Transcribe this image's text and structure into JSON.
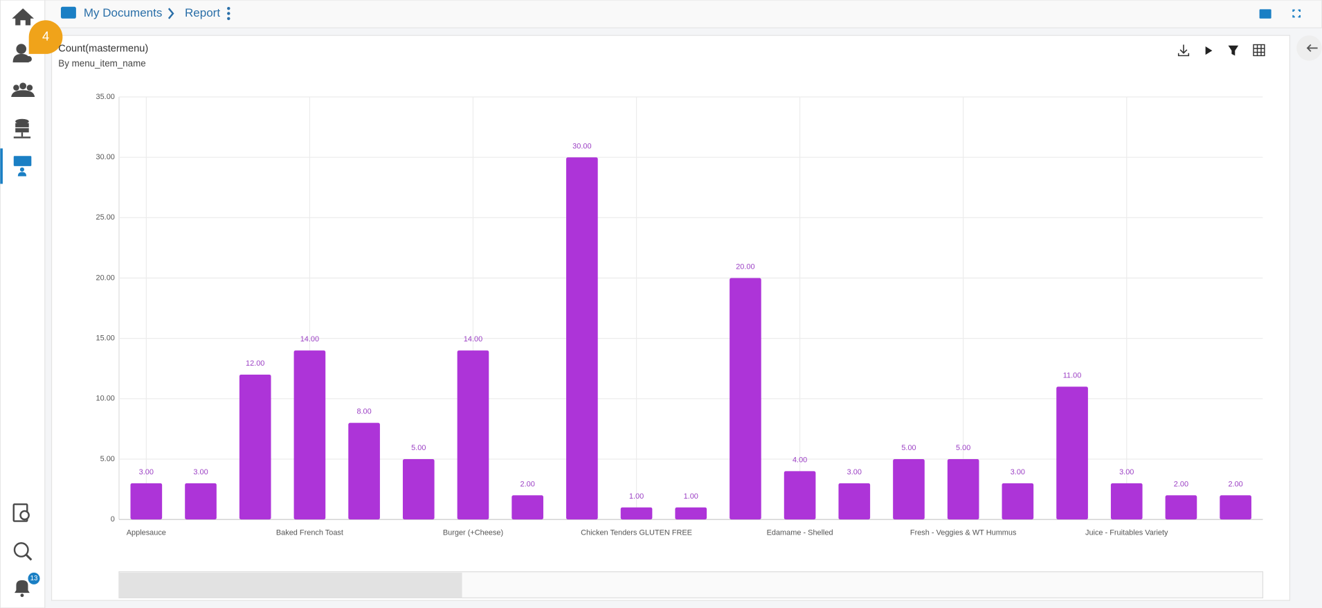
{
  "breadcrumb": [
    "My Documents",
    "Report"
  ],
  "step_badge": 4,
  "notification_count": 13,
  "chart_data": {
    "type": "bar",
    "title": "Count(mastermenu)",
    "subtitle": "By menu_item_name",
    "categories": [
      "Applesauce",
      null,
      null,
      "Baked French Toast",
      null,
      null,
      "Burger (+Cheese)",
      null,
      null,
      "Chicken Tenders GLUTEN FREE",
      null,
      null,
      "Edamame - Shelled",
      null,
      null,
      "Fresh - Veggies & WT Hummus",
      null,
      null,
      "Juice - Fruitables Variety",
      null,
      null
    ],
    "values": [
      3,
      3,
      12,
      14,
      8,
      5,
      14,
      2,
      30,
      1,
      1,
      20,
      4,
      3,
      5,
      5,
      3,
      11,
      3,
      2,
      2
    ],
    "value_labels": [
      "3.00",
      "3.00",
      "12.00",
      "14.00",
      "8.00",
      "5.00",
      "14.00",
      "2.00",
      "30.00",
      "1.00",
      "1.00",
      "20.00",
      "4.00",
      "3.00",
      "5.00",
      "5.00",
      "3.00",
      "11.00",
      "3.00",
      "2.00",
      "2.00"
    ],
    "color": "#ad34d8",
    "ylim": [
      0,
      35
    ],
    "yticks": [
      0,
      {
        "value": 5,
        "label": "5.00"
      },
      {
        "value": 10,
        "label": "10.00"
      },
      {
        "value": 15,
        "label": "15.00"
      },
      {
        "value": 20,
        "label": "20.00"
      },
      {
        "value": 25,
        "label": "25.00"
      },
      {
        "value": 30,
        "label": "30.00"
      },
      {
        "value": 35,
        "label": "35.00"
      }
    ],
    "grid": true
  }
}
